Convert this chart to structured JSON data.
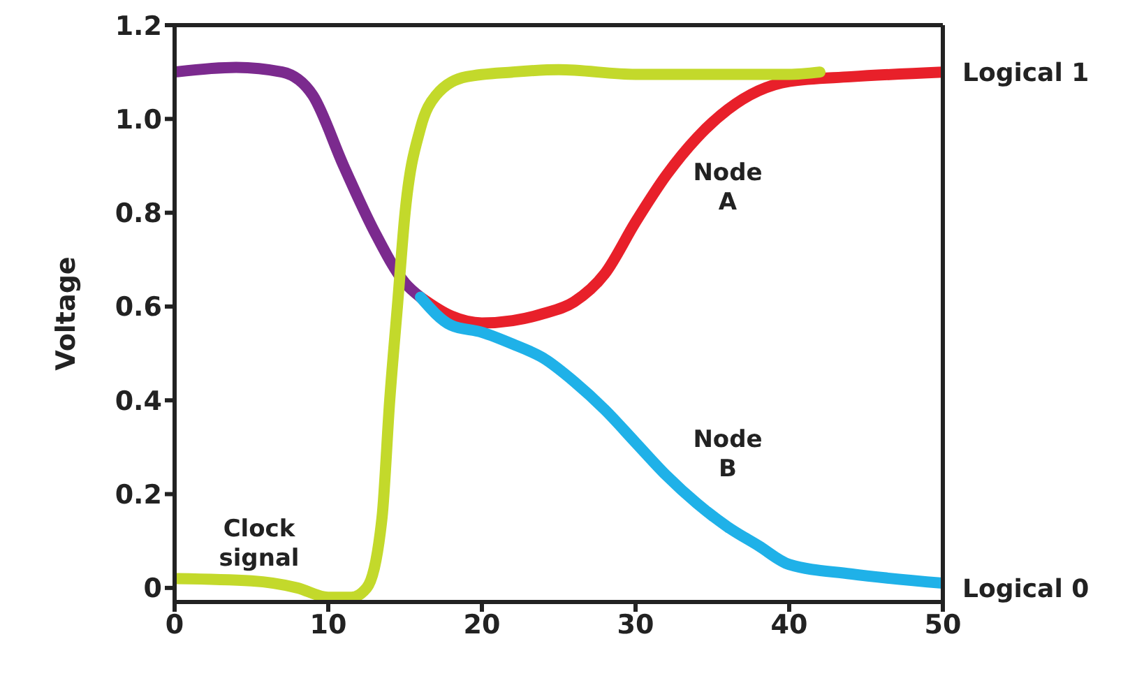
{
  "chart_data": {
    "type": "line",
    "ylabel": "Voltage",
    "xlim": [
      0,
      50
    ],
    "xticks": [
      0,
      10,
      20,
      30,
      40,
      50
    ],
    "ylim": [
      -0.03,
      1.2
    ],
    "yticks": [
      0,
      0.2,
      0.4,
      0.6,
      0.8,
      {
        "value": 1,
        "label": "1.0"
      },
      1.2
    ],
    "marker": "none",
    "line_style": "solid",
    "series": [
      {
        "color": "#7b2a8e",
        "x": [
          0,
          4,
          7,
          9,
          11,
          13,
          15,
          16
        ],
        "values": [
          1.1,
          1.11,
          1.1,
          1.05,
          0.9,
          0.76,
          0.65,
          0.62
        ]
      },
      {
        "name": "Node A",
        "color": "#e8202a",
        "x": [
          16,
          18,
          20,
          22,
          24,
          26,
          28,
          30,
          32,
          34,
          36,
          38,
          40,
          44,
          50
        ],
        "values": [
          0.62,
          0.58,
          0.565,
          0.57,
          0.585,
          0.61,
          0.67,
          0.78,
          0.88,
          0.96,
          1.02,
          1.06,
          1.08,
          1.09,
          1.1
        ]
      },
      {
        "name": "Node B",
        "color": "#1fb1e8",
        "x": [
          16,
          18,
          20,
          22,
          24,
          26,
          28,
          30,
          32,
          34,
          36,
          38,
          40,
          44,
          50
        ],
        "values": [
          0.62,
          0.56,
          0.545,
          0.52,
          0.49,
          0.44,
          0.38,
          0.31,
          0.24,
          0.18,
          0.13,
          0.09,
          0.05,
          0.03,
          0.01
        ]
      },
      {
        "name": "Clock signal",
        "color": "#c3d92b",
        "x": [
          0,
          5,
          8,
          10,
          11.5,
          12.5,
          13.5,
          14,
          14.5,
          15,
          16,
          17,
          19,
          22,
          25,
          30,
          40,
          42
        ],
        "values": [
          0.02,
          0.015,
          0,
          -0.02,
          -0.02,
          0,
          0.15,
          0.4,
          0.6,
          0.8,
          0.98,
          1.05,
          1.09,
          1.1,
          1.105,
          1.095,
          1.095,
          1.1
        ]
      }
    ],
    "annotations": [
      {
        "text": "Logical 1",
        "x": 50,
        "y": 1.1
      },
      {
        "text": "Logical 0",
        "x": 50,
        "y": 0
      }
    ]
  }
}
